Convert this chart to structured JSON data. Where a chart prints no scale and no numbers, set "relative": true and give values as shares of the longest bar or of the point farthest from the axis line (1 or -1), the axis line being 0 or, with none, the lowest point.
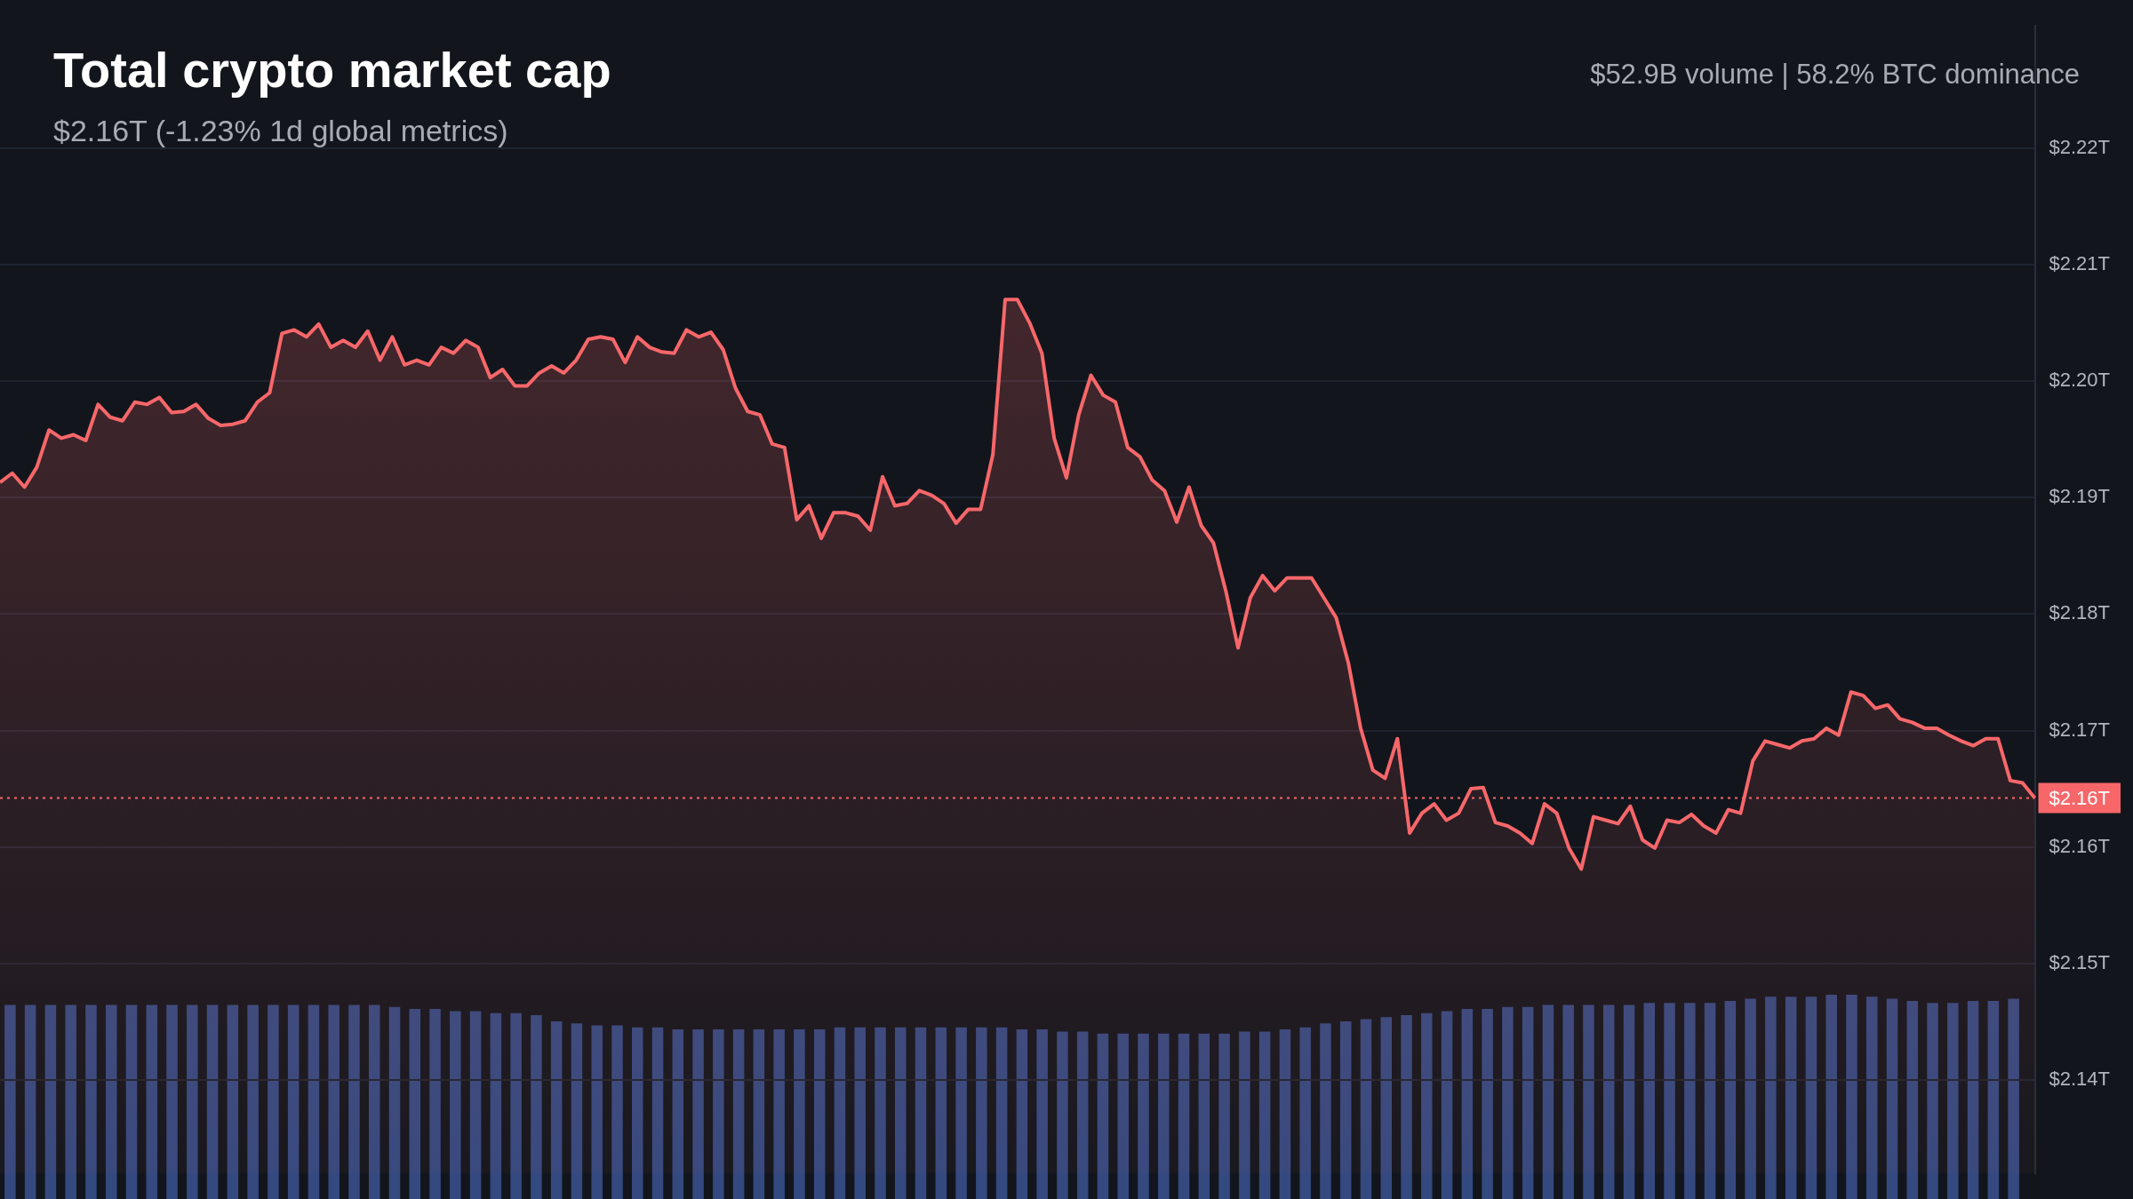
{
  "chart_data": [
    {
      "type": "area",
      "title": "Total crypto market cap",
      "subtitle": "$2.16T (-1.23% 1d global metrics)",
      "annotations": [
        "$52.9B volume | 58.2% BTC dominance"
      ],
      "categories": [
        null,
        null,
        null,
        null,
        null,
        null,
        null,
        null,
        null,
        null,
        null,
        null,
        null,
        null,
        null,
        null,
        null,
        null,
        null,
        null,
        null,
        null,
        null,
        null,
        null,
        null,
        null,
        null,
        null,
        null,
        null,
        null,
        null,
        null,
        null,
        null,
        null,
        null,
        null,
        null,
        null,
        null,
        null,
        null,
        null,
        null,
        null,
        null,
        null,
        null,
        null,
        null,
        null,
        null,
        null,
        null,
        null,
        null,
        null,
        null,
        null,
        null,
        null,
        null,
        null,
        null,
        null,
        null,
        null,
        null,
        null,
        null,
        null,
        null,
        null,
        null,
        null,
        null,
        null,
        null,
        null,
        null,
        null,
        null,
        null,
        null,
        null,
        null,
        null,
        null,
        null,
        null,
        null,
        null,
        null,
        null,
        null,
        null,
        null,
        null,
        null,
        null,
        null,
        null,
        null,
        null,
        null,
        null,
        null,
        null,
        null,
        null,
        null,
        null,
        null,
        null,
        null,
        null,
        null,
        null,
        null,
        null,
        null,
        null,
        null,
        null,
        null,
        null,
        null,
        null,
        null,
        null,
        null,
        null,
        null,
        null,
        null,
        null,
        null,
        null,
        null,
        null,
        null,
        null,
        null,
        null,
        null,
        null,
        null,
        null,
        null,
        null,
        null,
        null,
        null,
        null,
        null,
        null,
        null,
        null,
        null,
        null,
        null,
        null,
        null,
        null,
        null
      ],
      "series": [
        {
          "color": "#f7676a",
          "values": [
            2.1913,
            2.1921,
            2.1909,
            2.1926,
            2.1958,
            2.1951,
            2.1954,
            2.1949,
            2.198,
            2.1969,
            2.1966,
            2.1982,
            2.198,
            2.1986,
            2.1973,
            2.1974,
            2.198,
            2.1968,
            2.1962,
            2.1963,
            2.1966,
            2.1982,
            2.199,
            2.2041,
            2.2044,
            2.2038,
            2.2049,
            2.2029,
            2.2035,
            2.2029,
            2.2043,
            2.2018,
            2.2038,
            2.2014,
            2.2018,
            2.2014,
            2.2029,
            2.2024,
            2.2035,
            2.2029,
            2.2003,
            2.201,
            2.1996,
            2.1996,
            2.2007,
            2.2013,
            2.2007,
            2.2018,
            2.2036,
            2.2038,
            2.2036,
            2.2016,
            2.2038,
            2.2029,
            2.2025,
            2.2024,
            2.2044,
            2.2038,
            2.2042,
            2.2027,
            2.1994,
            2.1974,
            2.1971,
            2.1946,
            2.1943,
            2.1881,
            2.1893,
            2.1865,
            2.1887,
            2.1887,
            2.1884,
            2.1872,
            2.1918,
            2.1893,
            2.1895,
            2.1906,
            2.1902,
            2.1895,
            2.1878,
            2.189,
            2.189,
            2.1937,
            2.207,
            2.207,
            2.205,
            2.2024,
            2.1951,
            2.1917,
            2.1971,
            2.2005,
            2.1988,
            2.1982,
            2.1943,
            2.1935,
            2.1915,
            2.1906,
            2.1879,
            2.1909,
            2.1876,
            2.1861,
            2.182,
            2.1771,
            2.1814,
            2.1833,
            2.182,
            2.1831,
            2.1831,
            2.1831,
            2.1814,
            2.1797,
            2.1758,
            2.1702,
            2.1666,
            2.1659,
            2.1693,
            2.1612,
            2.1629,
            2.1637,
            2.1623,
            2.1629,
            2.165,
            2.1651,
            2.1621,
            2.1618,
            2.1612,
            2.1603,
            2.1637,
            2.1629,
            2.1599,
            2.1581,
            2.1626,
            2.1623,
            2.162,
            2.1635,
            2.1606,
            2.1599,
            2.1623,
            2.1621,
            2.1628,
            2.1618,
            2.1612,
            2.1632,
            2.1629,
            2.1674,
            2.1691,
            2.1688,
            2.1685,
            2.1691,
            2.1693,
            2.1702,
            2.1696,
            2.1733,
            2.173,
            2.1719,
            2.1722,
            2.171,
            2.1707,
            2.1702,
            2.1702,
            2.1696,
            2.1691,
            2.1687,
            2.1693,
            2.1693,
            2.1657,
            2.1655,
            2.1642
          ]
        }
      ],
      "ylim": [
        2.132,
        2.2305
      ],
      "yticks": [
        {
          "value": 2.14,
          "label": "$2.14T"
        },
        {
          "value": 2.15,
          "label": "$2.15T"
        },
        {
          "value": 2.16,
          "label": "$2.16T"
        },
        {
          "value": 2.17,
          "label": "$2.17T"
        },
        {
          "value": 2.18,
          "label": "$2.18T"
        },
        {
          "value": 2.19,
          "label": "$2.19T"
        },
        {
          "value": 2.2,
          "label": "$2.20T"
        },
        {
          "value": 2.21,
          "label": "$2.21T"
        },
        {
          "value": 2.22,
          "label": "$2.22T"
        }
      ],
      "ref_lines": [
        {
          "axis": "y",
          "value": 2.1642,
          "label": "$2.16T",
          "color": "#f7676a",
          "line_style": "dotted"
        }
      ],
      "grid": "y",
      "tick_labels": "y",
      "legend": false
    },
    {
      "type": "bar",
      "relative": true,
      "color": "#34497f",
      "tick_labels": false,
      "legend": false,
      "categories": [
        null,
        null,
        null,
        null,
        null,
        null,
        null,
        null,
        null,
        null,
        null,
        null,
        null,
        null,
        null,
        null,
        null,
        null,
        null,
        null,
        null,
        null,
        null,
        null,
        null,
        null,
        null,
        null,
        null,
        null,
        null,
        null,
        null,
        null,
        null,
        null,
        null,
        null,
        null,
        null,
        null,
        null,
        null,
        null,
        null,
        null,
        null,
        null,
        null,
        null,
        null,
        null,
        null,
        null,
        null,
        null,
        null,
        null,
        null,
        null,
        null,
        null,
        null,
        null,
        null,
        null,
        null,
        null,
        null,
        null,
        null,
        null,
        null,
        null,
        null,
        null,
        null,
        null,
        null,
        null,
        null,
        null,
        null,
        null,
        null,
        null,
        null,
        null,
        null,
        null,
        null,
        null,
        null,
        null,
        null,
        null,
        null,
        null,
        null,
        null
      ],
      "values": [
        0.95,
        0.95,
        0.95,
        0.95,
        0.95,
        0.95,
        0.95,
        0.95,
        0.95,
        0.95,
        0.95,
        0.95,
        0.95,
        0.95,
        0.95,
        0.95,
        0.95,
        0.95,
        0.95,
        0.94,
        0.93,
        0.93,
        0.92,
        0.92,
        0.91,
        0.91,
        0.9,
        0.87,
        0.86,
        0.85,
        0.85,
        0.84,
        0.84,
        0.83,
        0.83,
        0.83,
        0.83,
        0.83,
        0.83,
        0.83,
        0.83,
        0.84,
        0.84,
        0.84,
        0.84,
        0.84,
        0.84,
        0.84,
        0.84,
        0.84,
        0.83,
        0.83,
        0.82,
        0.82,
        0.81,
        0.81,
        0.81,
        0.81,
        0.81,
        0.81,
        0.81,
        0.82,
        0.82,
        0.83,
        0.84,
        0.86,
        0.87,
        0.88,
        0.89,
        0.9,
        0.91,
        0.92,
        0.93,
        0.93,
        0.94,
        0.94,
        0.95,
        0.95,
        0.95,
        0.95,
        0.95,
        0.96,
        0.96,
        0.96,
        0.96,
        0.97,
        0.98,
        0.99,
        0.99,
        0.99,
        1,
        1,
        0.99,
        0.98,
        0.97,
        0.96,
        0.96,
        0.97,
        0.97,
        0.98
      ]
    }
  ]
}
